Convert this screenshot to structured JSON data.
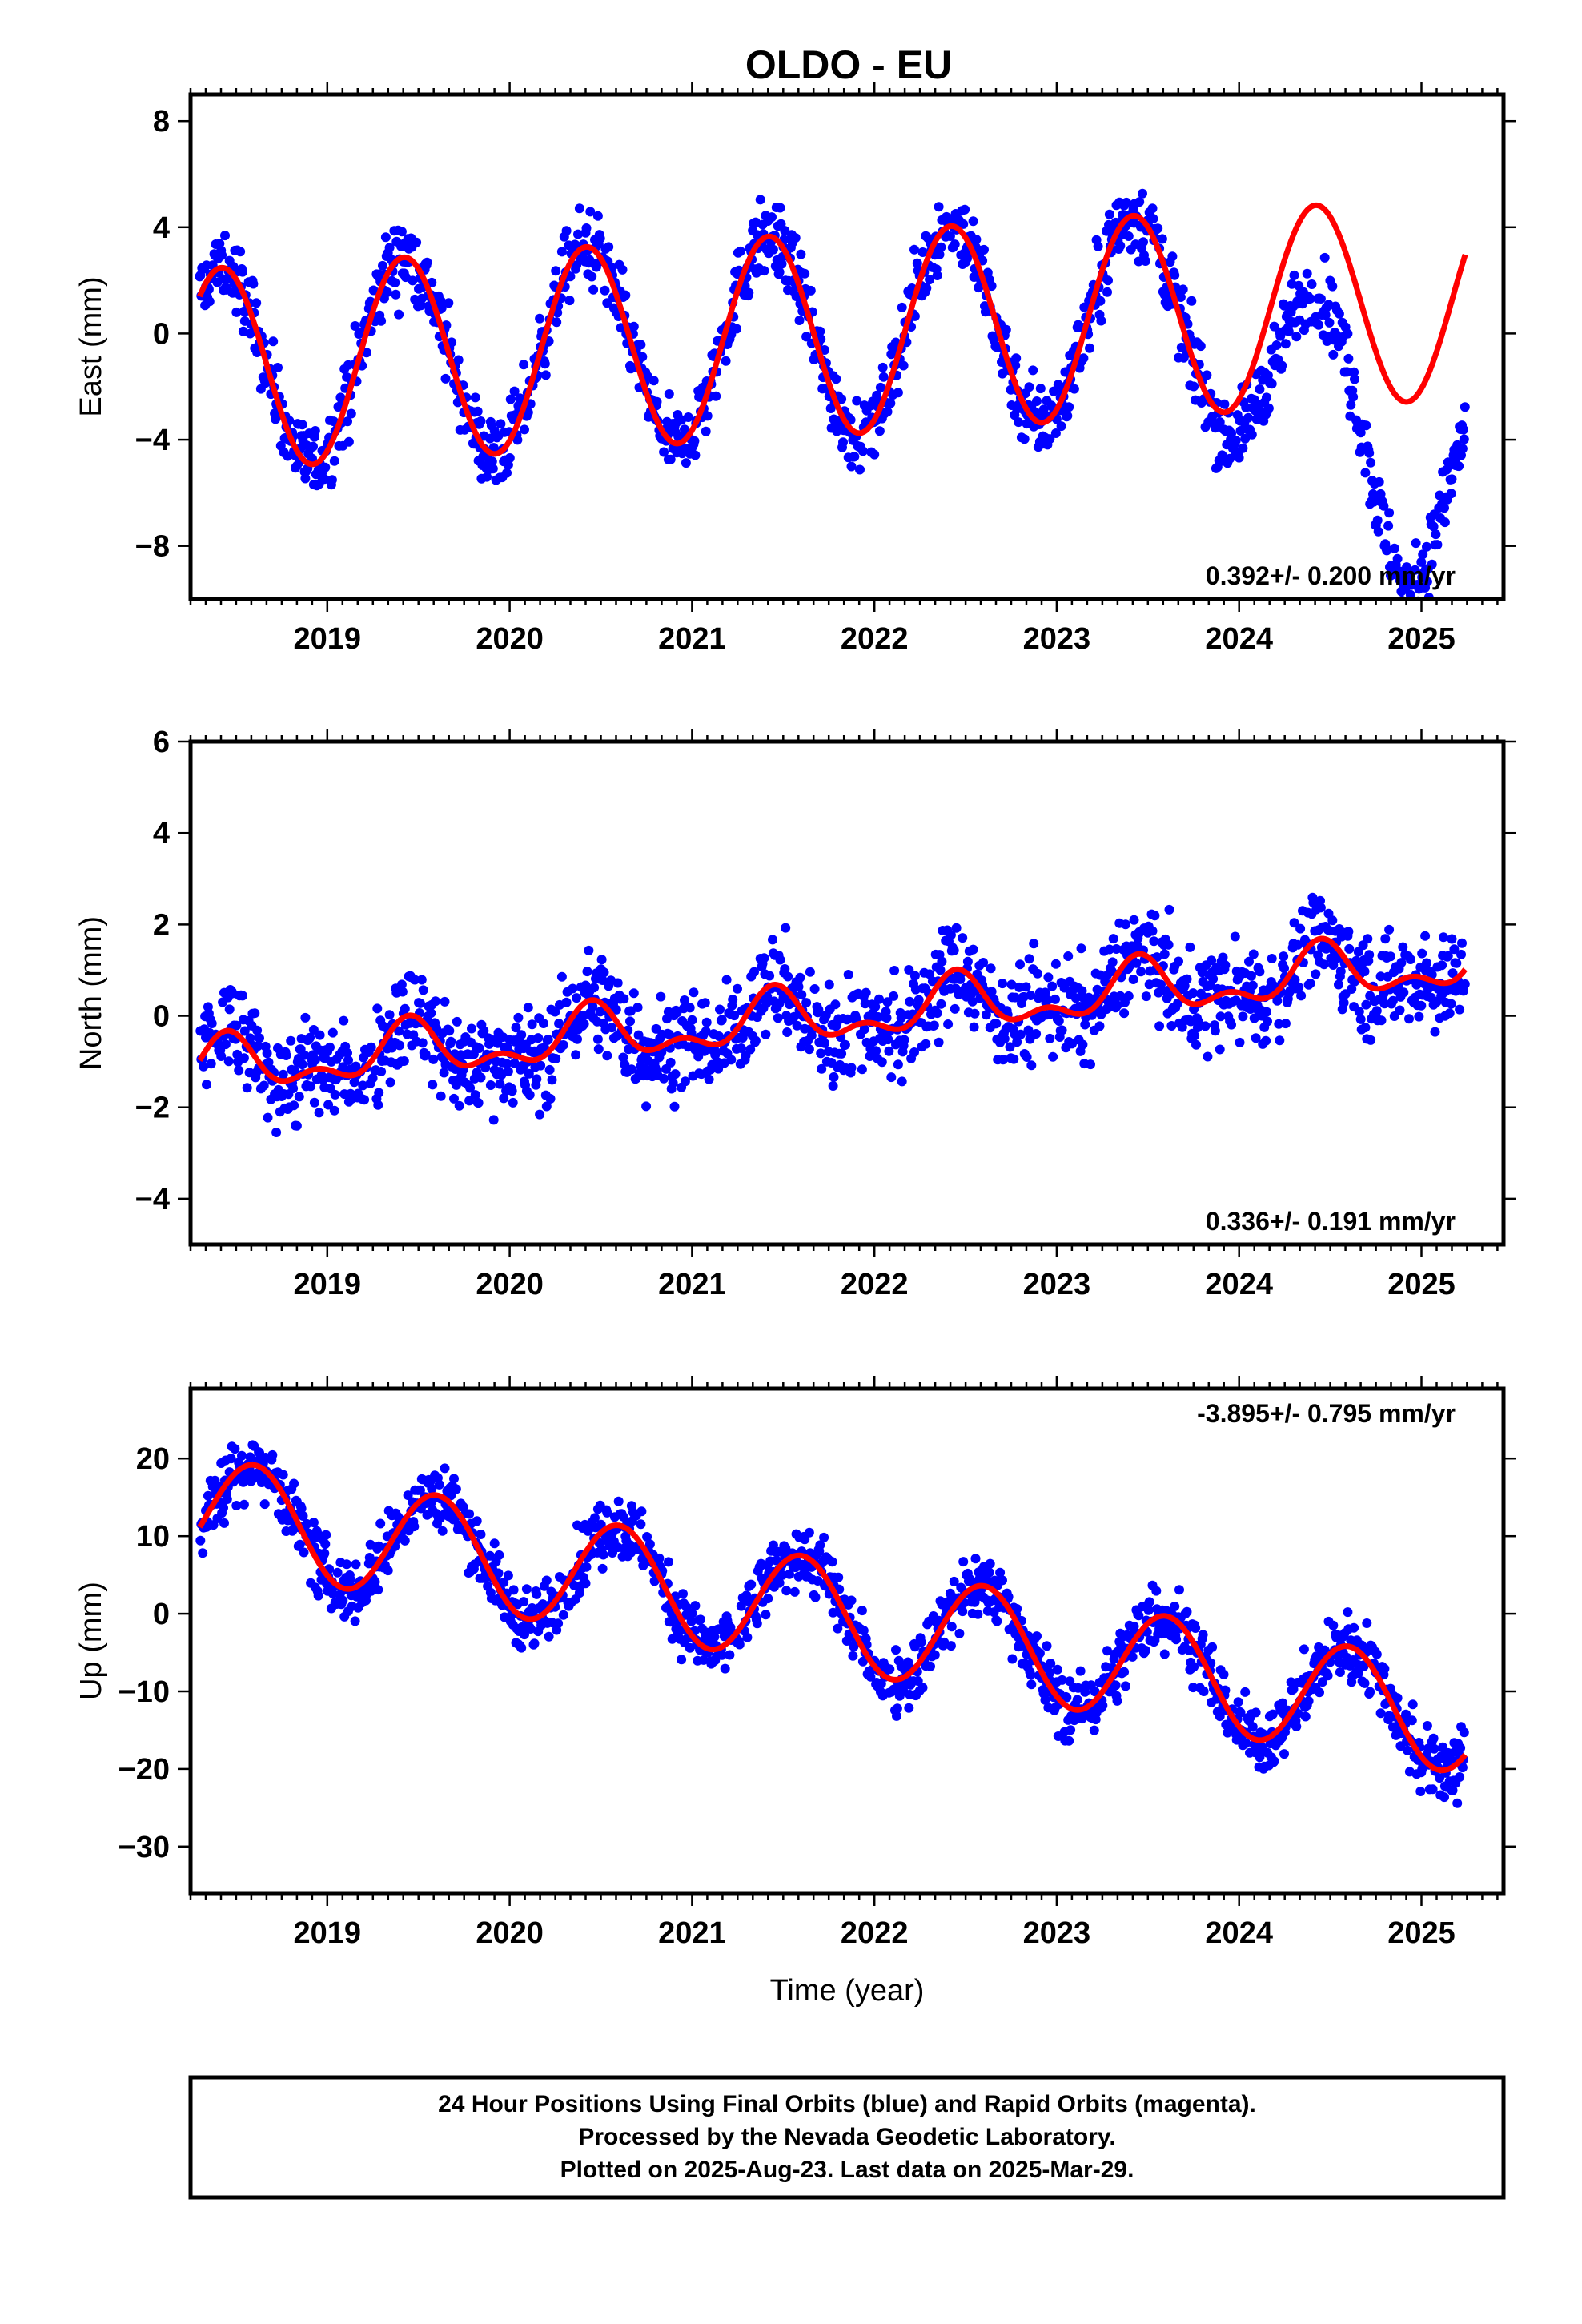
{
  "title": "OLDO - EU",
  "colors": {
    "points": "#0000ff",
    "model": "#ff0000",
    "axis": "#000000"
  },
  "chart_data": [
    {
      "type": "scatter",
      "ylabel": "East (mm)",
      "ylim": [
        -10,
        9
      ],
      "yticks": [
        8,
        4,
        0,
        -4,
        -8
      ],
      "ytick_labels": [
        "8",
        "4",
        "0",
        "−4",
        "−8"
      ],
      "xlim": [
        2018.25,
        2025.45
      ],
      "xticks": [
        2019,
        2020,
        2021,
        2022,
        2023,
        2024,
        2025
      ],
      "xtick_labels": [
        "2019",
        "2020",
        "2021",
        "2022",
        "2023",
        "2024",
        "2025"
      ],
      "rate_text": "0.392+/- 0.200 mm/yr",
      "rate_position": "bottom-right",
      "series": [
        {
          "kind": "points",
          "start": 2018.3,
          "end": 2025.24,
          "step": 0.0042,
          "offset": 0.0,
          "slope": 0.392,
          "t0": 2021.8,
          "amp": 3.8,
          "phase_peak": 0.42,
          "noise": 1.3,
          "anomaly": [
            [
              2023.8,
              0.0
            ],
            [
              2024.2,
              -2.5
            ],
            [
              2024.6,
              -4.0
            ],
            [
              2024.9,
              -7.0
            ],
            [
              2025.24,
              -6.5
            ]
          ]
        },
        {
          "kind": "line",
          "start": 2018.3,
          "end": 2025.24,
          "offset": 0.0,
          "slope": 0.392,
          "t0": 2021.8,
          "amp": 3.8,
          "phase_peak": 0.42
        }
      ]
    },
    {
      "type": "scatter",
      "ylabel": "North (mm)",
      "ylim": [
        -5,
        6
      ],
      "yticks": [
        6,
        4,
        2,
        0,
        -2,
        -4
      ],
      "ytick_labels": [
        "6",
        "4",
        "2",
        "0",
        "−2",
        "−4"
      ],
      "xlim": [
        2018.25,
        2025.45
      ],
      "xticks": [
        2019,
        2020,
        2021,
        2022,
        2023,
        2024,
        2025
      ],
      "xtick_labels": [
        "2019",
        "2020",
        "2021",
        "2022",
        "2023",
        "2024",
        "2025"
      ],
      "rate_text": "0.336+/- 0.191 mm/yr",
      "rate_position": "bottom-right",
      "series": [
        {
          "kind": "points",
          "start": 2018.3,
          "end": 2025.24,
          "step": 0.0042,
          "offset": 0.0,
          "slope": 0.336,
          "t0": 2021.8,
          "amp": 0.5,
          "phase_peak": 0.45,
          "amp2": 0.3,
          "noise": 1.0,
          "anomaly": []
        },
        {
          "kind": "line",
          "start": 2018.3,
          "end": 2025.24,
          "offset": 0.0,
          "slope": 0.336,
          "t0": 2021.8,
          "amp": 0.5,
          "phase_peak": 0.45,
          "amp2": 0.3
        }
      ]
    },
    {
      "type": "scatter",
      "ylabel": "Up (mm)",
      "ylim": [
        -36,
        29
      ],
      "yticks": [
        20,
        10,
        0,
        -10,
        -20,
        -30
      ],
      "ytick_labels": [
        "20",
        "10",
        "0",
        "−10",
        "−20",
        "−30"
      ],
      "xlim": [
        2018.25,
        2025.45
      ],
      "xticks": [
        2019,
        2020,
        2021,
        2022,
        2023,
        2024,
        2025
      ],
      "xtick_labels": [
        "2019",
        "2020",
        "2021",
        "2022",
        "2023",
        "2024",
        "2025"
      ],
      "xlabel": "Time (year)",
      "rate_text": "-3.895+/- 0.795 mm/yr",
      "rate_position": "top-right",
      "series": [
        {
          "kind": "points",
          "start": 2018.3,
          "end": 2025.24,
          "step": 0.0042,
          "offset": -0.3,
          "slope": -3.895,
          "t0": 2021.8,
          "amp": 7.0,
          "phase_peak": 0.6,
          "noise": 4.0,
          "anomaly": []
        },
        {
          "kind": "line",
          "start": 2018.3,
          "end": 2025.24,
          "offset": -0.3,
          "slope": -3.895,
          "t0": 2021.8,
          "amp": 7.0,
          "phase_peak": 0.6
        }
      ]
    }
  ],
  "footer": {
    "line1": "24 Hour Positions Using Final Orbits (blue) and Rapid Orbits (magenta).",
    "line2": "Processed by the Nevada Geodetic Laboratory.",
    "line3": "Plotted on 2025-Aug-23. Last data on 2025-Mar-29."
  }
}
